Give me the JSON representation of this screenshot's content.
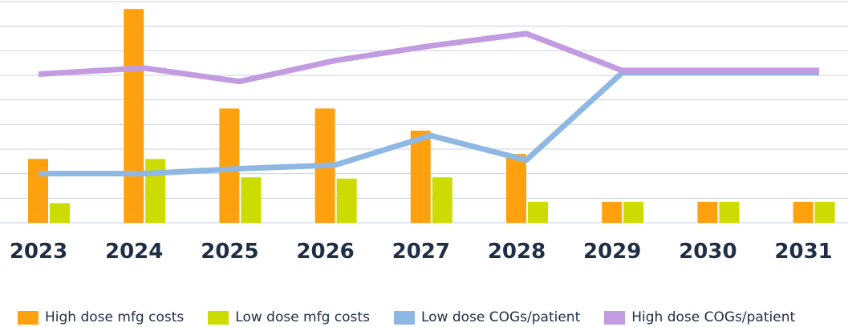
{
  "chart_data": {
    "type": "bar",
    "categories": [
      "2023",
      "2024",
      "2025",
      "2026",
      "2027",
      "2028",
      "2029",
      "2030",
      "2031"
    ],
    "ylim": [
      0,
      9
    ],
    "grid": true,
    "legend_position": "bottom",
    "bar_series": [
      {
        "name": "High dose mfg costs",
        "color": "#ffa10e",
        "values": [
          2.6,
          8.7,
          4.65,
          4.65,
          3.75,
          2.8,
          0.85,
          0.85,
          0.85
        ]
      },
      {
        "name": "Low dose mfg costs",
        "color": "#ccdc00",
        "values": [
          0.8,
          2.6,
          1.85,
          1.8,
          1.85,
          0.85,
          0.85,
          0.85,
          0.85
        ]
      }
    ],
    "line_series": [
      {
        "name": "Low dose COGs/patient",
        "color": "#8fb7e3",
        "values": [
          2.0,
          2.0,
          2.2,
          2.35,
          3.55,
          2.55,
          6.1,
          6.1,
          6.1
        ]
      },
      {
        "name": "High dose COGs/patient",
        "color": "#c39be0",
        "values": [
          6.05,
          6.3,
          5.75,
          6.6,
          7.2,
          7.7,
          6.2,
          6.2,
          6.2
        ]
      }
    ]
  }
}
